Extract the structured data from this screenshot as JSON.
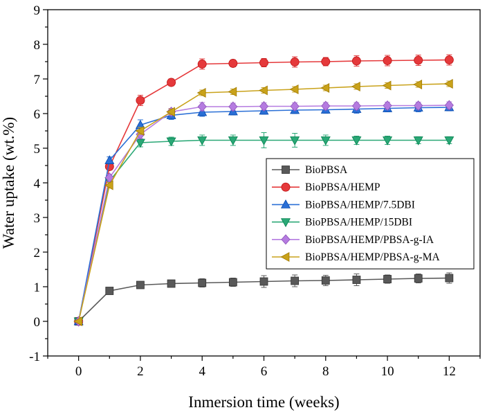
{
  "chart_data": {
    "type": "line",
    "title": "",
    "xlabel": "Inmersion time (weeks)",
    "ylabel": "Water uptake (wt.%)",
    "xlim": [
      -1,
      13
    ],
    "ylim": [
      -1,
      9
    ],
    "xticks": [
      0,
      2,
      4,
      6,
      8,
      10,
      12
    ],
    "yticks": [
      -1,
      0,
      1,
      2,
      3,
      4,
      5,
      6,
      7,
      8,
      9
    ],
    "grid": false,
    "legend_position": "lower-right",
    "x": [
      0,
      1,
      2,
      3,
      4,
      5,
      6,
      7,
      8,
      9,
      10,
      11,
      12
    ],
    "series": [
      {
        "name": "BioPBSA",
        "color": "#595959",
        "marker": "square",
        "values": [
          0,
          0.88,
          1.05,
          1.09,
          1.11,
          1.13,
          1.15,
          1.17,
          1.18,
          1.2,
          1.22,
          1.24,
          1.25
        ],
        "errors": [
          0,
          0.05,
          0.08,
          0.1,
          0.12,
          0.12,
          0.17,
          0.17,
          0.15,
          0.17,
          0.12,
          0.13,
          0.15
        ]
      },
      {
        "name": "BioPBSA/HEMP",
        "color": "#e5393b",
        "marker": "circle",
        "values": [
          0,
          4.47,
          6.38,
          6.9,
          7.43,
          7.45,
          7.47,
          7.49,
          7.5,
          7.52,
          7.53,
          7.54,
          7.55
        ],
        "errors": [
          0,
          0.1,
          0.15,
          0.1,
          0.15,
          0.1,
          0.12,
          0.15,
          0.12,
          0.15,
          0.15,
          0.15,
          0.15
        ]
      },
      {
        "name": "BioPBSA/HEMP/7.5DBI",
        "color": "#2a6fd6",
        "marker": "triangle-up",
        "values": [
          0,
          4.65,
          5.67,
          5.95,
          6.04,
          6.06,
          6.08,
          6.1,
          6.11,
          6.13,
          6.15,
          6.17,
          6.18
        ],
        "errors": [
          0,
          0.1,
          0.15,
          0.12,
          0.12,
          0.1,
          0.1,
          0.1,
          0.1,
          0.12,
          0.1,
          0.12,
          0.1
        ]
      },
      {
        "name": "BioPBSA/HEMP/15DBI",
        "color": "#2aa876",
        "marker": "triangle-down",
        "values": [
          0,
          4.05,
          5.16,
          5.2,
          5.23,
          5.23,
          5.23,
          5.23,
          5.23,
          5.23,
          5.23,
          5.23,
          5.23
        ],
        "errors": [
          0,
          0.1,
          0.12,
          0.12,
          0.15,
          0.15,
          0.22,
          0.2,
          0.15,
          0.12,
          0.12,
          0.1,
          0.1
        ]
      },
      {
        "name": "BioPBSA/HEMP/PBSA-g-IA",
        "color": "#b57be0",
        "marker": "diamond",
        "values": [
          0,
          4.15,
          5.4,
          6.05,
          6.2,
          6.2,
          6.21,
          6.21,
          6.22,
          6.22,
          6.23,
          6.23,
          6.24
        ],
        "errors": [
          0,
          0.1,
          0.12,
          0.1,
          0.12,
          0.1,
          0.1,
          0.1,
          0.1,
          0.1,
          0.1,
          0.1,
          0.1
        ]
      },
      {
        "name": "BioPBSA/HEMP/PBSA-g-MA",
        "color": "#c9a21a",
        "marker": "triangle-left",
        "values": [
          0,
          3.93,
          5.5,
          6.05,
          6.6,
          6.63,
          6.67,
          6.7,
          6.74,
          6.78,
          6.81,
          6.84,
          6.86
        ],
        "errors": [
          0,
          0.08,
          0.1,
          0.08,
          0.08,
          0.08,
          0.08,
          0.08,
          0.08,
          0.08,
          0.08,
          0.08,
          0.08
        ]
      }
    ]
  }
}
